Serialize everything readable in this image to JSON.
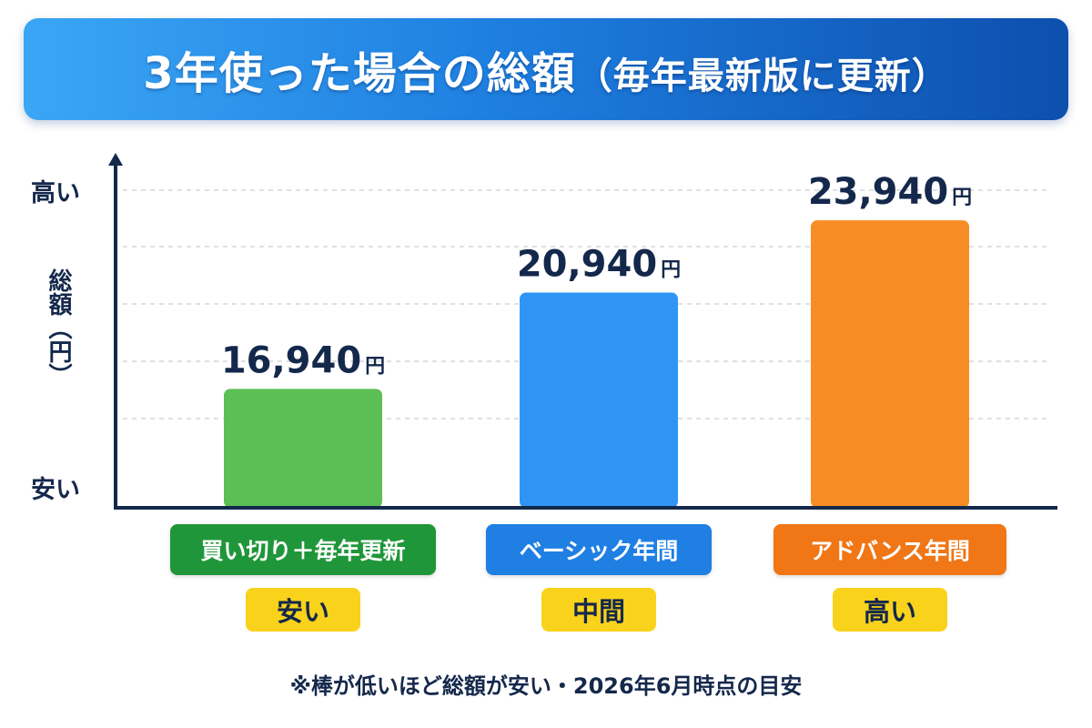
{
  "title": {
    "main": "3年使った場合の総額",
    "paren": "（毎年最新版に更新）"
  },
  "colors": {
    "title_gradient_start": "#3aa6f5",
    "title_gradient_end": "#0d4fae",
    "axis": "#14284b",
    "value_text": "#14284b",
    "badge": "#f9d21b"
  },
  "chart_data": {
    "type": "bar",
    "categories": [
      "買い切り＋毎年更新",
      "ベーシック年間",
      "アドバンス年間"
    ],
    "values": [
      16940,
      20940,
      23940
    ],
    "value_labels": [
      {
        "number": "16,940",
        "unit": "円"
      },
      {
        "number": "20,940",
        "unit": "円"
      },
      {
        "number": "23,940",
        "unit": "円"
      }
    ],
    "bar_colors": [
      "#5cbf55",
      "#2f95f5",
      "#f88d25"
    ],
    "label_colors": [
      "#20963a",
      "#1f7fe3",
      "#f07616"
    ],
    "ranks": [
      "安い",
      "中間",
      "高い"
    ],
    "ylabel": "総額（円）",
    "y_high_label": "高い",
    "y_low_label": "安い",
    "grid": true,
    "legend": "none"
  },
  "footnote": "※棒が低いほど総額が安い・2026年6月時点の目安"
}
